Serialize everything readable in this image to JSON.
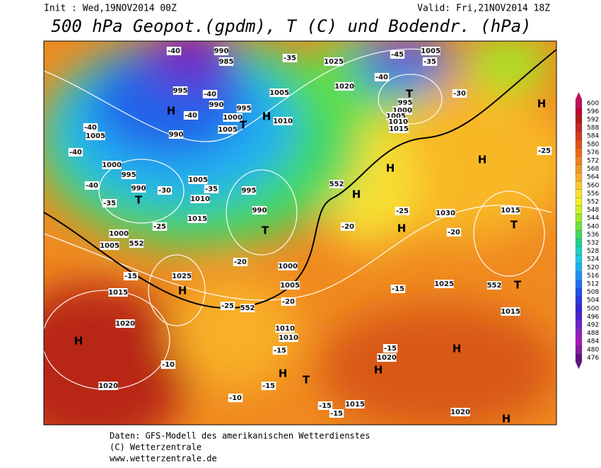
{
  "header": {
    "init": "Init : Wed,19NOV2014 00Z",
    "valid": "Valid: Fri,21NOV2014 18Z",
    "title": "500 hPa Geopot.(gpdm), T (C) und Bodendr. (hPa)"
  },
  "colorbar": {
    "values": [
      600,
      596,
      592,
      588,
      584,
      580,
      576,
      572,
      568,
      564,
      560,
      556,
      552,
      548,
      544,
      540,
      536,
      532,
      528,
      524,
      520,
      516,
      512,
      508,
      504,
      500,
      496,
      492,
      488,
      484,
      480,
      476
    ],
    "colors": [
      "#c0105a",
      "#c00030",
      "#b01818",
      "#c02820",
      "#d03c1c",
      "#e05018",
      "#e86818",
      "#f08020",
      "#f09828",
      "#f8b028",
      "#f8c830",
      "#f8e030",
      "#f0f028",
      "#c8f028",
      "#a0e828",
      "#70e040",
      "#40d860",
      "#20d090",
      "#20d0c0",
      "#20c8e8",
      "#20b0f0",
      "#2090f0",
      "#2070f0",
      "#2050e8",
      "#2838e0",
      "#3820d8",
      "#5020d0",
      "#7020c8",
      "#9020c0",
      "#a818b8",
      "#8818a0",
      "#601080"
    ]
  },
  "map_labels": [
    "-40",
    "990",
    "985",
    "-35",
    "1025",
    "-45",
    "1005",
    "-35",
    "995",
    "H",
    "-40",
    "990",
    "-40",
    "1000",
    "995",
    "T",
    "1005",
    "H",
    "1005",
    "1010",
    "1020",
    "-40",
    "T",
    "995",
    "1000",
    "1005",
    "1010",
    "1015",
    "-30",
    "H",
    "1005",
    "-40",
    "990",
    "-40",
    "1000",
    "995",
    "-40",
    "990",
    "T",
    "-35",
    "-30",
    "1005",
    "-35",
    "1010",
    "995",
    "990",
    "T",
    "1015",
    "-25",
    "1000",
    "1005",
    "552",
    "H",
    "H",
    "-25",
    "H",
    "552",
    "-25",
    "1030",
    "1015",
    "H",
    "T",
    "-20",
    "-20",
    "1000",
    "-20",
    "1025",
    "H",
    "-15",
    "1015",
    "1005",
    "552",
    "-25",
    "-20",
    "1025",
    "552",
    "T",
    "1015",
    "-15",
    "1020",
    "H",
    "1010",
    "1010",
    "-15",
    "-15",
    "1020",
    "H",
    "H",
    "-10",
    "H",
    "T",
    "-15",
    "-10",
    "1020",
    "-15",
    "1015",
    "-15",
    "1020",
    "H"
  ],
  "footer": [
    "Daten: GFS-Modell des amerikanischen Wetterdienstes",
    "(C) Wetterzentrale",
    "www.wetterzentrale.de"
  ]
}
